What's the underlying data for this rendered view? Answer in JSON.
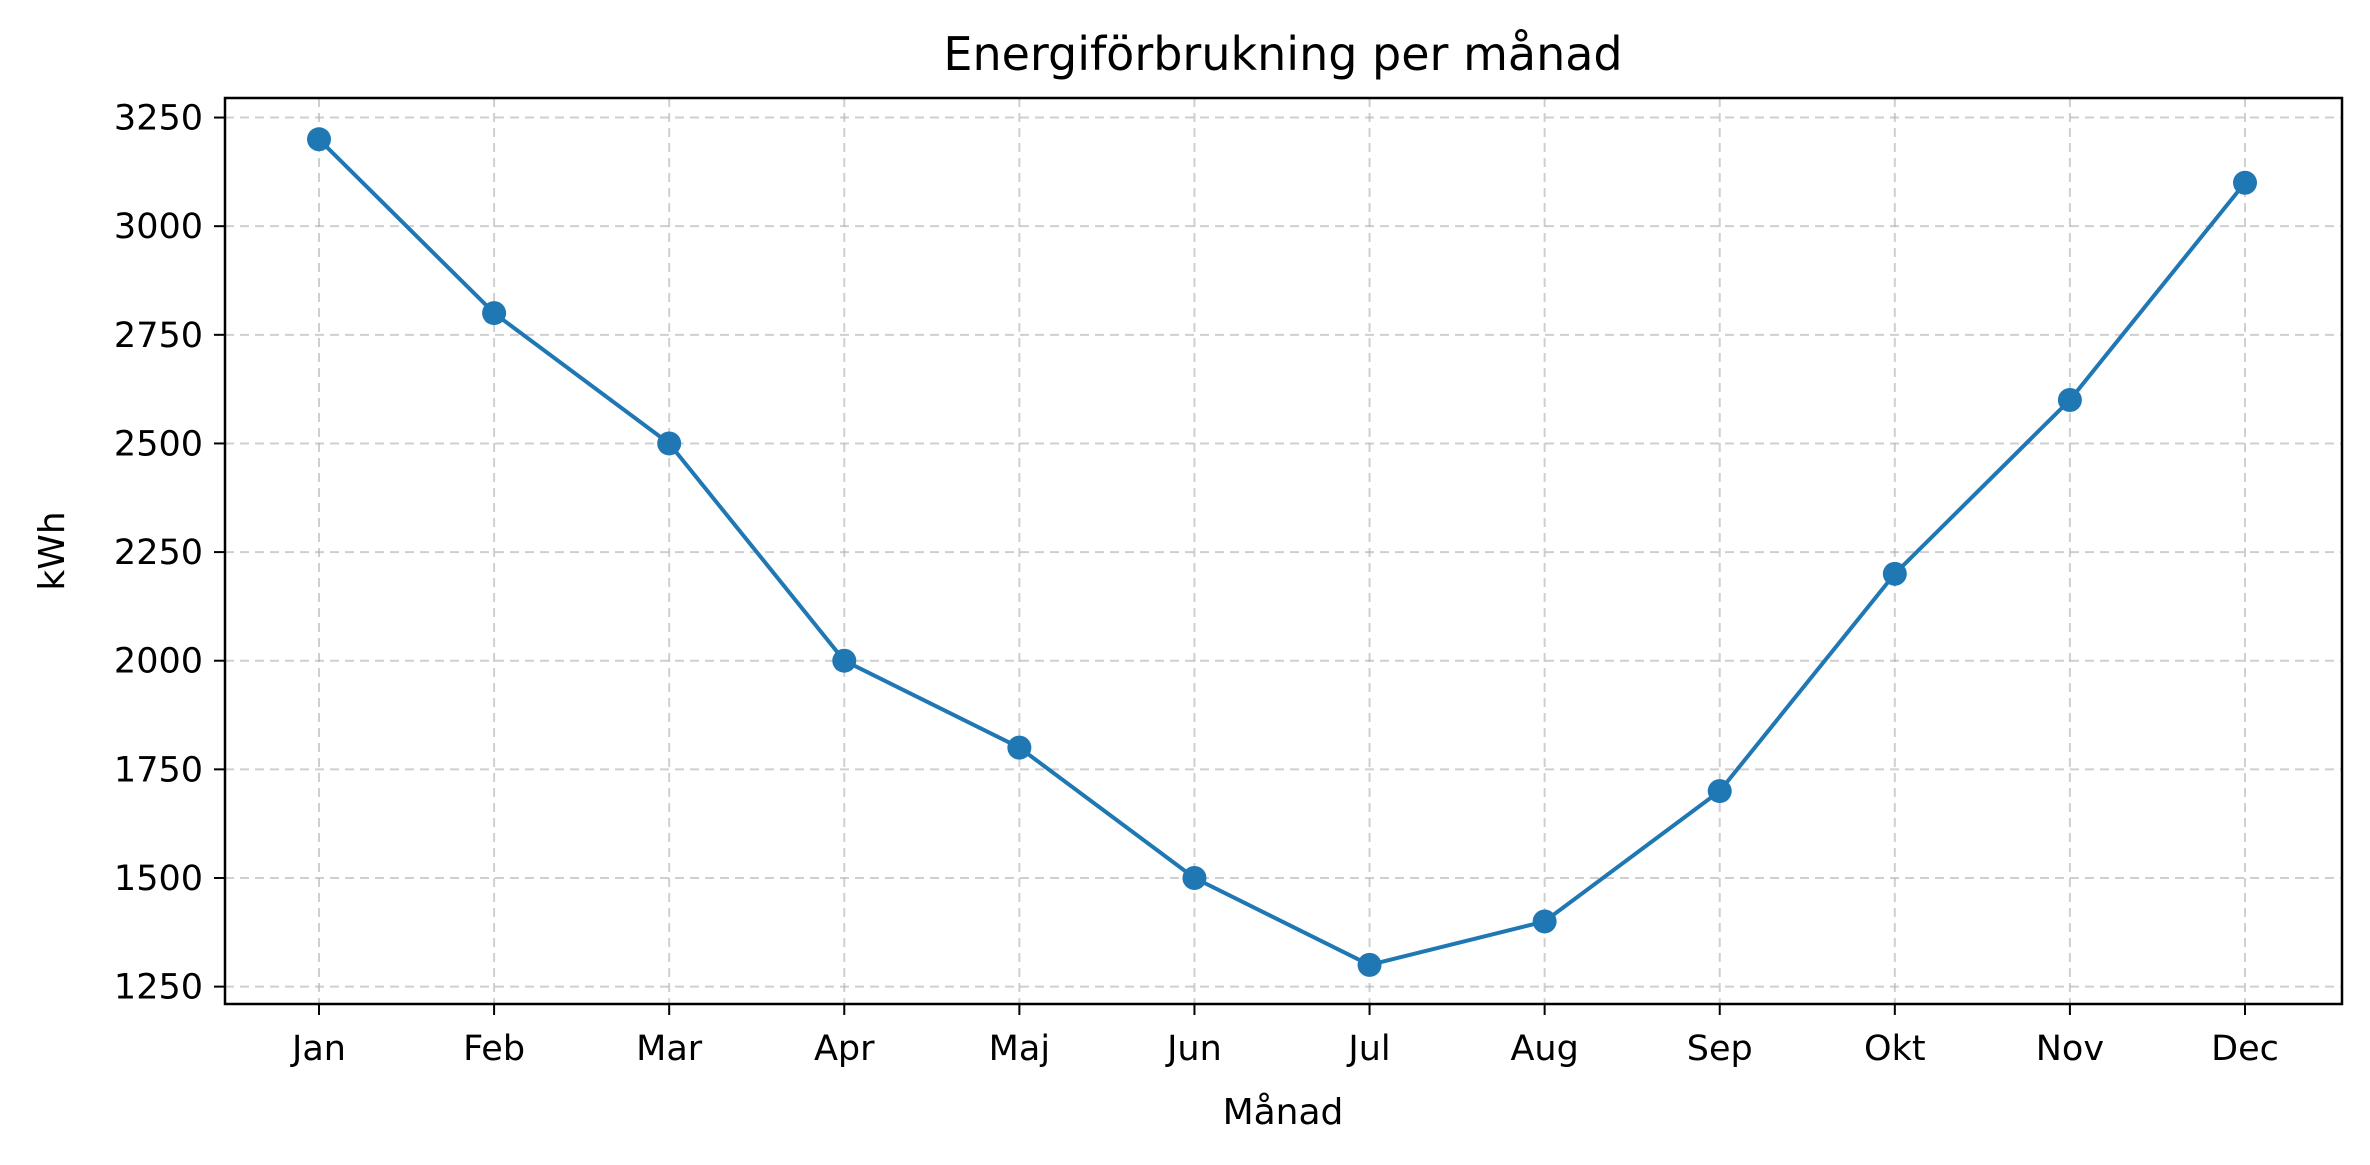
{
  "chart_data": {
    "type": "line",
    "title": "Energiförbrukning per månad",
    "xlabel": "Månad",
    "ylabel": "kWh",
    "categories": [
      "Jan",
      "Feb",
      "Mar",
      "Apr",
      "Maj",
      "Jun",
      "Jul",
      "Aug",
      "Sep",
      "Okt",
      "Nov",
      "Dec"
    ],
    "series": [
      {
        "values": [
          3200,
          2800,
          2500,
          2000,
          1800,
          1500,
          1300,
          1400,
          1700,
          2200,
          2600,
          3100
        ],
        "color": "#1f77b4",
        "marker": "circle"
      }
    ],
    "ylim": [
      1210,
      3295
    ],
    "yticks": [
      1250,
      1500,
      1750,
      2000,
      2250,
      2500,
      2750,
      3000,
      3250
    ],
    "grid": true,
    "grid_style": "dashed",
    "legend": "none"
  }
}
